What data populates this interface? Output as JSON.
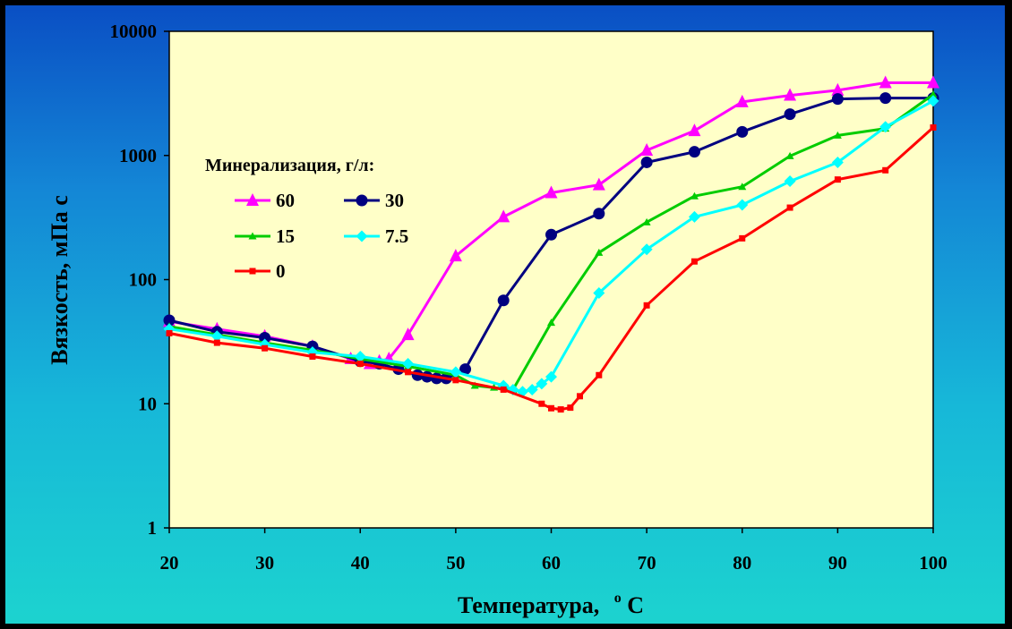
{
  "chart_data": {
    "type": "line",
    "xlabel": "Температура,",
    "xlabel_unit_sup": "o",
    "xlabel_unit": "C",
    "ylabel": "Вязкость, мПа с",
    "xlim": [
      20,
      100
    ],
    "ylim": [
      1,
      10000
    ],
    "yscale": "log",
    "x_ticks": [
      20,
      30,
      40,
      50,
      60,
      70,
      80,
      90,
      100
    ],
    "x_tick_labels": [
      "20",
      "30",
      "40",
      "50",
      "60",
      "70",
      "80",
      "90",
      "100"
    ],
    "y_ticks": [
      1,
      10,
      100,
      1000,
      10000
    ],
    "y_tick_labels": [
      "1",
      "10",
      "100",
      "1000",
      "10000"
    ],
    "grid": false,
    "plot_background": "#ffffc8",
    "legend": {
      "title": "Минерализация, г/л:",
      "placement": "left-middle"
    },
    "series": [
      {
        "name": "60",
        "color": "#ff00ff",
        "marker": "triangle",
        "points": [
          [
            20,
            46
          ],
          [
            25,
            40
          ],
          [
            30,
            35
          ],
          [
            35,
            29
          ],
          [
            39,
            23
          ],
          [
            41,
            21
          ],
          [
            42,
            22
          ],
          [
            43,
            23
          ],
          [
            45,
            36
          ],
          [
            50,
            155
          ],
          [
            55,
            320
          ],
          [
            60,
            500
          ],
          [
            65,
            580
          ],
          [
            70,
            1100
          ],
          [
            75,
            1580
          ],
          [
            80,
            2700
          ],
          [
            85,
            3050
          ],
          [
            90,
            3350
          ],
          [
            95,
            3850
          ],
          [
            100,
            3850
          ]
        ]
      },
      {
        "name": "30",
        "color": "#000080",
        "marker": "circle",
        "points": [
          [
            20,
            47
          ],
          [
            25,
            38
          ],
          [
            30,
            34
          ],
          [
            35,
            29
          ],
          [
            40,
            22
          ],
          [
            42,
            21
          ],
          [
            44,
            19
          ],
          [
            46,
            17
          ],
          [
            47,
            16.5
          ],
          [
            48,
            16
          ],
          [
            49,
            16
          ],
          [
            51,
            19
          ],
          [
            55,
            68
          ],
          [
            60,
            230
          ],
          [
            65,
            340
          ],
          [
            70,
            880
          ],
          [
            75,
            1070
          ],
          [
            80,
            1550
          ],
          [
            85,
            2150
          ],
          [
            90,
            2850
          ],
          [
            95,
            2900
          ],
          [
            100,
            2900
          ]
        ]
      },
      {
        "name": "15",
        "color": "#00cc00",
        "marker": "small-triangle",
        "points": [
          [
            20,
            42
          ],
          [
            25,
            36
          ],
          [
            30,
            31
          ],
          [
            35,
            27
          ],
          [
            40,
            23
          ],
          [
            45,
            20
          ],
          [
            50,
            17
          ],
          [
            52,
            14
          ],
          [
            54,
            13.5
          ],
          [
            56,
            13
          ],
          [
            60,
            45
          ],
          [
            65,
            165
          ],
          [
            70,
            290
          ],
          [
            75,
            470
          ],
          [
            80,
            560
          ],
          [
            85,
            990
          ],
          [
            90,
            1450
          ],
          [
            95,
            1650
          ],
          [
            100,
            3100
          ]
        ]
      },
      {
        "name": "7.5",
        "color": "#00ffff",
        "marker": "diamond",
        "points": [
          [
            20,
            40
          ],
          [
            25,
            35
          ],
          [
            30,
            30
          ],
          [
            35,
            26
          ],
          [
            40,
            24
          ],
          [
            45,
            21
          ],
          [
            50,
            18
          ],
          [
            55,
            14
          ],
          [
            56,
            13
          ],
          [
            57,
            12.5
          ],
          [
            58,
            13
          ],
          [
            59,
            14.5
          ],
          [
            60,
            16.5
          ],
          [
            65,
            78
          ],
          [
            70,
            175
          ],
          [
            75,
            320
          ],
          [
            80,
            400
          ],
          [
            85,
            620
          ],
          [
            90,
            880
          ],
          [
            95,
            1700
          ],
          [
            100,
            2750
          ]
        ]
      },
      {
        "name": "0",
        "color": "#ff0000",
        "marker": "square",
        "points": [
          [
            20,
            37
          ],
          [
            25,
            31
          ],
          [
            30,
            28
          ],
          [
            35,
            24
          ],
          [
            40,
            21
          ],
          [
            45,
            18
          ],
          [
            50,
            15.5
          ],
          [
            55,
            13
          ],
          [
            59,
            10
          ],
          [
            60,
            9.2
          ],
          [
            61,
            9.0
          ],
          [
            62,
            9.3
          ],
          [
            63,
            11.5
          ],
          [
            65,
            17
          ],
          [
            70,
            62
          ],
          [
            75,
            140
          ],
          [
            80,
            215
          ],
          [
            85,
            380
          ],
          [
            90,
            640
          ],
          [
            95,
            760
          ],
          [
            100,
            1680
          ]
        ]
      }
    ]
  }
}
